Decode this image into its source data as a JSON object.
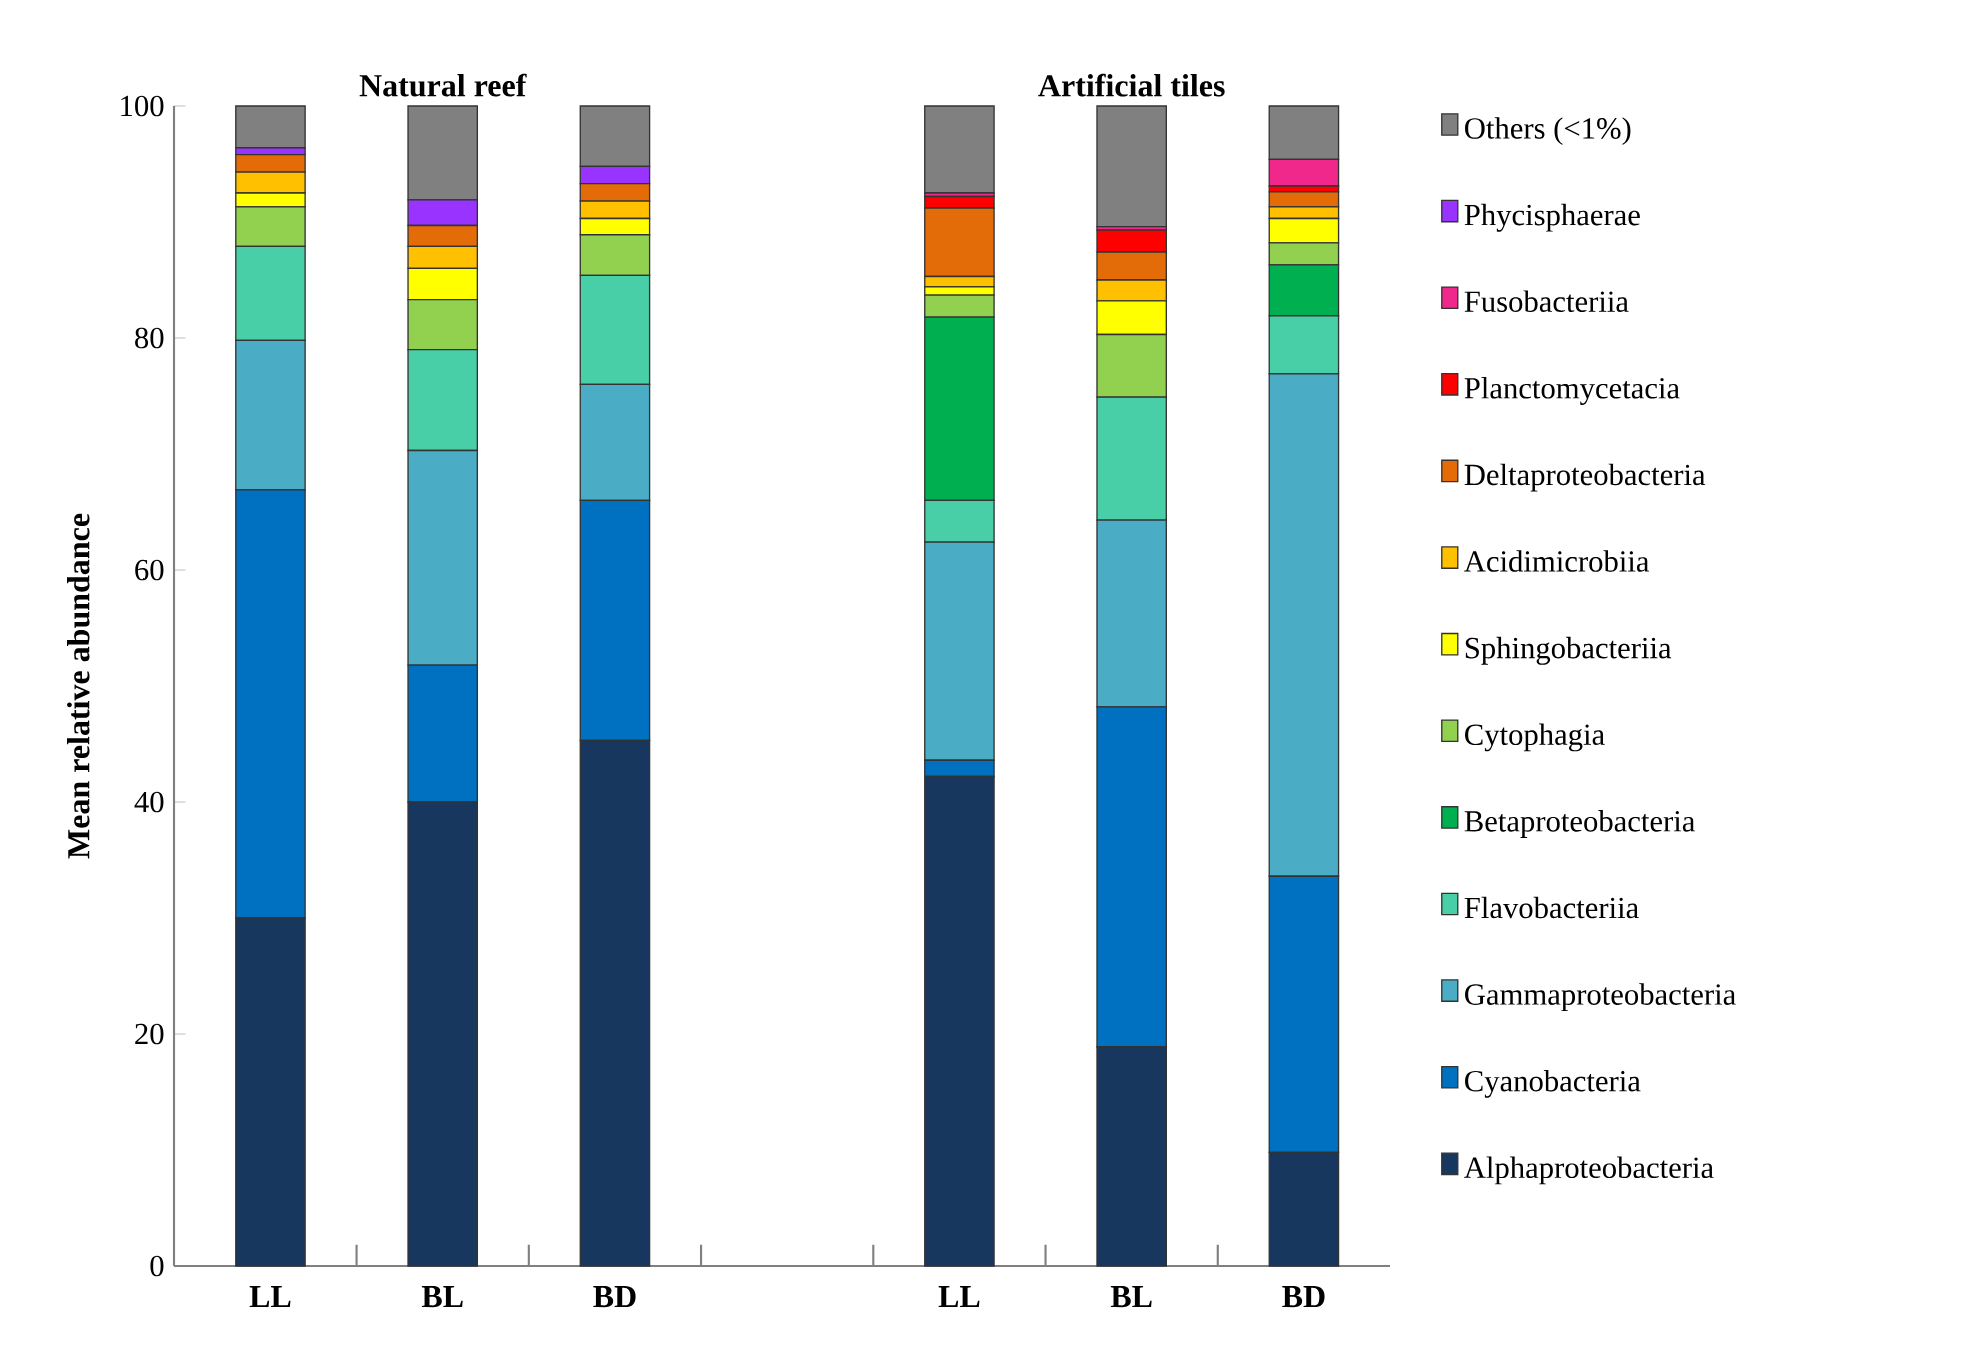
{
  "chart_data": {
    "type": "bar",
    "stacked": true,
    "ylabel": "Mean relative abundance",
    "annotations": [
      "Natural reef",
      "Artificial tiles"
    ],
    "categories": [
      "LL",
      "BL",
      "BD",
      null,
      "LL",
      "BL",
      "BD"
    ],
    "ylim": [
      0,
      100
    ],
    "yticks": [
      0,
      20,
      40,
      60,
      80,
      100
    ],
    "legend": "right",
    "series": [
      {
        "name": "Alphaproteobacteria",
        "color": "#17375e",
        "values": [
          30,
          40,
          45.3,
          null,
          42.2,
          18.9,
          9.8
        ]
      },
      {
        "name": "Cyanobacteria",
        "color": "#0070c0",
        "values": [
          36.9,
          11.8,
          20.7,
          null,
          1.4,
          29.3,
          23.8
        ]
      },
      {
        "name": "Gammaproteobacteria",
        "color": "#4bacc6",
        "values": [
          12.9,
          18.5,
          10.0,
          null,
          18.8,
          16.1,
          43.3
        ]
      },
      {
        "name": "Flavobacteriia",
        "color": "#48cfa8",
        "values": [
          8.1,
          8.7,
          9.4,
          null,
          3.6,
          10.6,
          5.0
        ]
      },
      {
        "name": "Betaproteobacteria",
        "color": "#00b050",
        "values": [
          0,
          0,
          0,
          null,
          15.8,
          0,
          4.4
        ]
      },
      {
        "name": "Cytophagia",
        "color": "#92d050",
        "values": [
          3.4,
          4.3,
          3.5,
          null,
          1.9,
          5.4,
          1.9
        ]
      },
      {
        "name": "Sphingobacteriia",
        "color": "#ffff00",
        "values": [
          1.2,
          2.7,
          1.4,
          null,
          0.7,
          2.9,
          2.1
        ]
      },
      {
        "name": "Acidimicrobiia",
        "color": "#ffc000",
        "values": [
          1.8,
          1.9,
          1.5,
          null,
          0.9,
          1.8,
          1.0
        ]
      },
      {
        "name": "Deltaproteobacteria",
        "color": "#e36c09",
        "values": [
          1.5,
          1.8,
          1.5,
          null,
          5.9,
          2.4,
          1.3
        ]
      },
      {
        "name": "Planctomycetacia",
        "color": "#ff0000",
        "values": [
          0,
          0,
          0,
          null,
          1.0,
          1.9,
          0.5
        ]
      },
      {
        "name": "Fusobacteriia",
        "color": "#f0288c",
        "values": [
          0,
          0,
          0,
          null,
          0.3,
          0.3,
          2.3
        ]
      },
      {
        "name": "Phycisphaerae",
        "color": "#9933ff",
        "values": [
          0.6,
          2.2,
          1.5,
          null,
          0,
          0,
          0
        ]
      },
      {
        "name": "Others (<1%)",
        "color": "#808080",
        "values": [
          3.6,
          8.1,
          5.2,
          null,
          7.5,
          10.4,
          4.6
        ]
      }
    ]
  }
}
